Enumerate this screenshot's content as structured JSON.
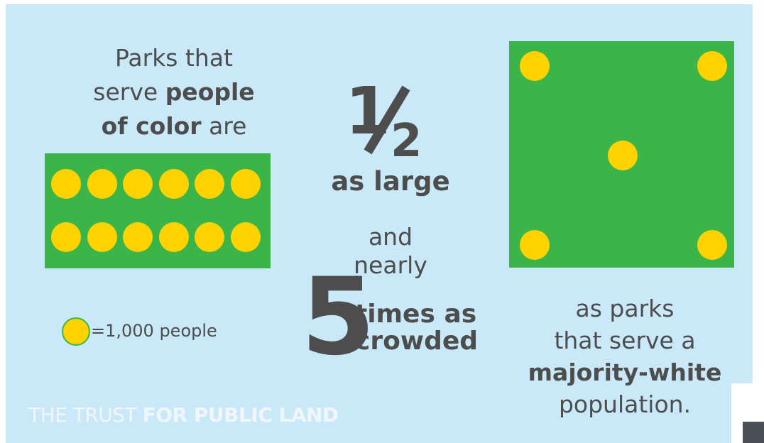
{
  "left": {
    "line1": "Parks that",
    "line2_plain": "serve ",
    "line2_bold": "people",
    "line3_bold": "of color",
    "line3_plain": " are",
    "dot_count": 12
  },
  "center": {
    "fraction_numerator": "1",
    "fraction_denominator": "2",
    "as_large": "as large",
    "and": "and",
    "nearly": "nearly",
    "five": "5",
    "times_as": "times as",
    "crowded": "crowded"
  },
  "legend": {
    "text": "=1,000 people"
  },
  "right": {
    "line1": "as parks",
    "line2": "that serve a",
    "line3_bold": "majority-white",
    "line4": "population.",
    "dot_count": 5
  },
  "brand": {
    "plain": "THE TRUST ",
    "bold": "FOR PUBLIC LAND"
  },
  "colors": {
    "background": "#c9e8f8",
    "park_green": "#3bb54a",
    "person_yellow": "#ffd200",
    "text_gray": "#4d4d4d"
  }
}
